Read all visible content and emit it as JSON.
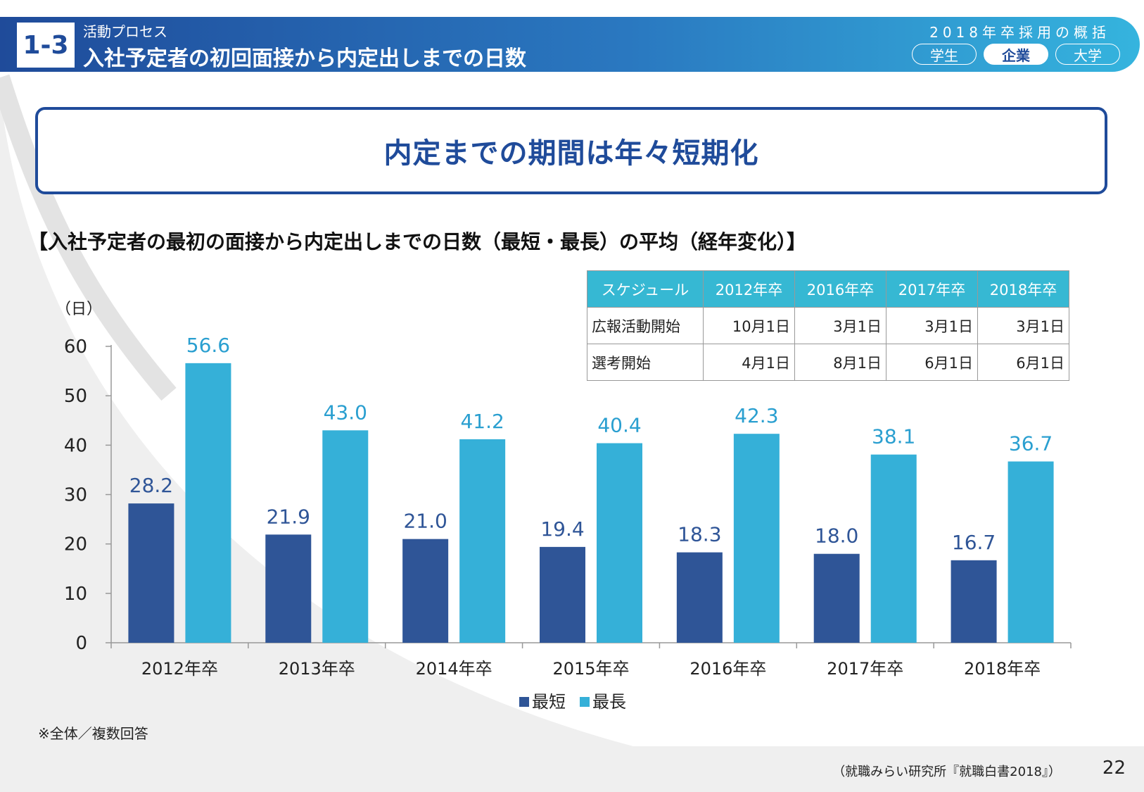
{
  "header": {
    "section_no": "1-3",
    "sub_label": "活動プロセス",
    "title": "入社予定者の初回面接から内定出しまでの日数",
    "overview_label": "2018年卒採用の概括",
    "tabs": [
      {
        "label": "学生",
        "active": false
      },
      {
        "label": "企業",
        "active": true
      },
      {
        "label": "大学",
        "active": false
      }
    ]
  },
  "headline": "内定までの期間は年々短期化",
  "chart_title": "【入社予定者の最初の面接から内定出しまでの日数（最短・最長）の平均（経年変化）】",
  "schedule_table": {
    "headers": [
      "スケジュール",
      "2012年卒",
      "2016年卒",
      "2017年卒",
      "2018年卒"
    ],
    "rows": [
      {
        "label": "広報活動開始",
        "values": [
          "10月1日",
          "3月1日",
          "3月1日",
          "3月1日"
        ]
      },
      {
        "label": "選考開始",
        "values": [
          "4月1日",
          "8月1日",
          "6月1日",
          "6月1日"
        ]
      }
    ]
  },
  "chart_data": {
    "type": "bar",
    "ylabel": "（日）",
    "ylim": [
      0,
      60
    ],
    "yticks": [
      0,
      10,
      20,
      30,
      40,
      50,
      60
    ],
    "categories": [
      "2012年卒",
      "2013年卒",
      "2014年卒",
      "2015年卒",
      "2016年卒",
      "2017年卒",
      "2018年卒"
    ],
    "series": [
      {
        "name": "最短",
        "color": "#2f5597",
        "label_color": "#2f5597",
        "values": [
          28.2,
          21.9,
          21.0,
          19.4,
          18.3,
          18.0,
          16.7
        ]
      },
      {
        "name": "最長",
        "color": "#35b0d8",
        "label_color": "#2a9fd0",
        "values": [
          56.6,
          43.0,
          41.2,
          40.4,
          42.3,
          38.1,
          36.7
        ]
      }
    ],
    "legend": "bottom-center"
  },
  "note": "※全体／複数回答",
  "source": "（就職みらい研究所『就職白書2018』）",
  "page_number": "22"
}
